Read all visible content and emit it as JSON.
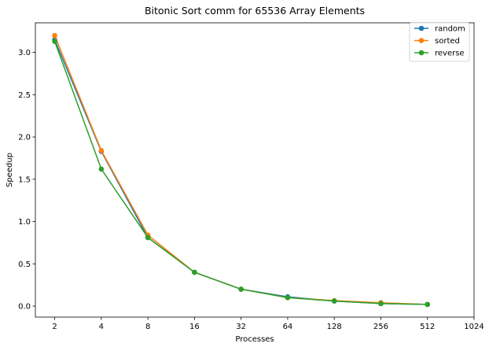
{
  "chart_data": {
    "type": "line",
    "title": "Bitonic Sort comm for 65536 Array Elements",
    "xlabel": "Processes",
    "ylabel": "Speedup",
    "x_scale": "log2",
    "x_ticks": [
      2,
      4,
      8,
      16,
      32,
      64,
      128,
      256,
      512,
      1024
    ],
    "x_tick_labels": [
      "2",
      "4",
      "8",
      "16",
      "32",
      "64",
      "128",
      "256",
      "512",
      "1024"
    ],
    "xlim": [
      1.5,
      1024
    ],
    "y_ticks": [
      0.0,
      0.5,
      1.0,
      1.5,
      2.0,
      2.5,
      3.0
    ],
    "y_tick_labels": [
      "0.0",
      "0.5",
      "1.0",
      "1.5",
      "2.0",
      "2.5",
      "3.0"
    ],
    "ylim": [
      -0.13,
      3.35
    ],
    "grid": false,
    "legend": "top-right",
    "marker": "circle",
    "x": [
      2,
      4,
      8,
      16,
      32,
      64,
      128,
      256,
      512
    ],
    "series": [
      {
        "name": "random",
        "color": "#1f77b4",
        "values": [
          3.15,
          1.83,
          0.81,
          0.4,
          0.2,
          0.11,
          0.06,
          0.03,
          0.02
        ]
      },
      {
        "name": "sorted",
        "color": "#ff7f0e",
        "values": [
          3.2,
          1.84,
          0.84,
          0.4,
          0.2,
          0.1,
          0.065,
          0.04,
          0.02
        ]
      },
      {
        "name": "reverse",
        "color": "#2ca02c",
        "values": [
          3.13,
          1.62,
          0.81,
          0.4,
          0.2,
          0.1,
          0.06,
          0.03,
          0.02
        ]
      }
    ]
  }
}
